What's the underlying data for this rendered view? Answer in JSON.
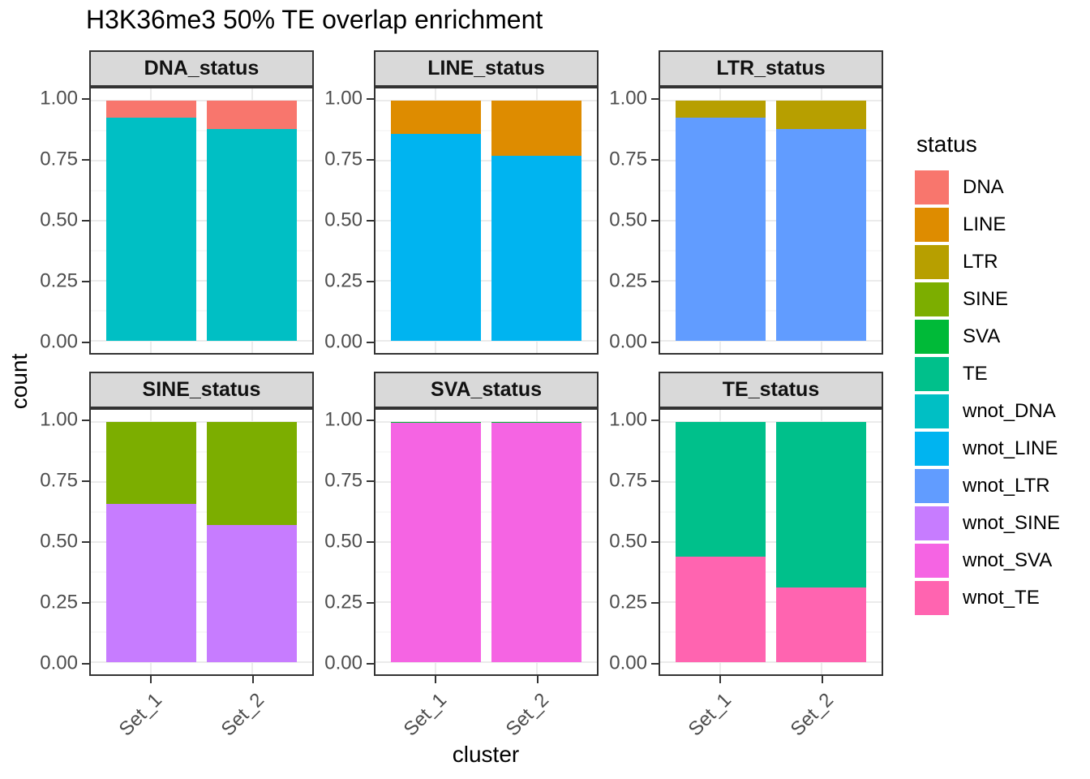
{
  "title": "H3K36me3 50% TE overlap enrichment",
  "axes": {
    "x_title": "cluster",
    "y_title": "count",
    "y_tick_labels": [
      "1.00",
      "0.75",
      "0.50",
      "0.25",
      "0.00"
    ],
    "x_tick_labels": [
      "Set_1",
      "Set_2"
    ]
  },
  "legend": {
    "title": "status",
    "position": "right",
    "entries": [
      {
        "label": "DNA",
        "color": "#F8766D"
      },
      {
        "label": "LINE",
        "color": "#DE8C00"
      },
      {
        "label": "LTR",
        "color": "#B79F00"
      },
      {
        "label": "SINE",
        "color": "#7CAE00"
      },
      {
        "label": "SVA",
        "color": "#00BA38"
      },
      {
        "label": "TE",
        "color": "#00C08B"
      },
      {
        "label": "wnot_DNA",
        "color": "#00BFC4"
      },
      {
        "label": "wnot_LINE",
        "color": "#00B4F0"
      },
      {
        "label": "wnot_LTR",
        "color": "#619CFF"
      },
      {
        "label": "wnot_SINE",
        "color": "#C77CFF"
      },
      {
        "label": "wnot_SVA",
        "color": "#F564E3"
      },
      {
        "label": "wnot_TE",
        "color": "#FF64B0"
      }
    ]
  },
  "style": {
    "panel_border_color": "#333333",
    "strip_fill": "#D9D9D9",
    "grid_major_color": "#EBEBEB",
    "tick_label_color": "#4D4D4D"
  },
  "chart_data": {
    "type": "bar",
    "mode": "stacked-proportion",
    "facet_layout": "3x2",
    "title": "H3K36me3 50% TE overlap enrichment",
    "xlabel": "cluster",
    "ylabel": "count",
    "ylim": [
      0,
      1
    ],
    "grid": true,
    "legend_position": "right",
    "y_major_ticks": [
      1.0,
      0.75,
      0.5,
      0.25,
      0.0
    ],
    "y_minor_ticks": [
      0.875,
      0.625,
      0.375,
      0.125
    ],
    "categories": [
      "Set_1",
      "Set_2"
    ],
    "colors": {
      "DNA": "#F8766D",
      "LINE": "#DE8C00",
      "LTR": "#B79F00",
      "SINE": "#7CAE00",
      "SVA": "#00BA38",
      "TE": "#00C08B",
      "wnot_DNA": "#00BFC4",
      "wnot_LINE": "#00B4F0",
      "wnot_LTR": "#619CFF",
      "wnot_SINE": "#C77CFF",
      "wnot_SVA": "#F564E3",
      "wnot_TE": "#FF64B0"
    },
    "facets": [
      {
        "name": "DNA_status",
        "bars": [
          {
            "category": "Set_1",
            "segments": [
              {
                "status": "DNA",
                "value": 0.07
              },
              {
                "status": "wnot_DNA",
                "value": 0.93
              }
            ]
          },
          {
            "category": "Set_2",
            "segments": [
              {
                "status": "DNA",
                "value": 0.12
              },
              {
                "status": "wnot_DNA",
                "value": 0.88
              }
            ]
          }
        ]
      },
      {
        "name": "LINE_status",
        "bars": [
          {
            "category": "Set_1",
            "segments": [
              {
                "status": "LINE",
                "value": 0.14
              },
              {
                "status": "wnot_LINE",
                "value": 0.86
              }
            ]
          },
          {
            "category": "Set_2",
            "segments": [
              {
                "status": "LINE",
                "value": 0.23
              },
              {
                "status": "wnot_LINE",
                "value": 0.77
              }
            ]
          }
        ]
      },
      {
        "name": "LTR_status",
        "bars": [
          {
            "category": "Set_1",
            "segments": [
              {
                "status": "LTR",
                "value": 0.07
              },
              {
                "status": "wnot_LTR",
                "value": 0.93
              }
            ]
          },
          {
            "category": "Set_2",
            "segments": [
              {
                "status": "LTR",
                "value": 0.12
              },
              {
                "status": "wnot_LTR",
                "value": 0.88
              }
            ]
          }
        ]
      },
      {
        "name": "SINE_status",
        "bars": [
          {
            "category": "Set_1",
            "segments": [
              {
                "status": "SINE",
                "value": 0.34
              },
              {
                "status": "wnot_SINE",
                "value": 0.66
              }
            ]
          },
          {
            "category": "Set_2",
            "segments": [
              {
                "status": "SINE",
                "value": 0.43
              },
              {
                "status": "wnot_SINE",
                "value": 0.57
              }
            ]
          }
        ]
      },
      {
        "name": "SVA_status",
        "bars": [
          {
            "category": "Set_1",
            "segments": [
              {
                "status": "SVA",
                "value": 0.005
              },
              {
                "status": "wnot_SVA",
                "value": 0.995
              }
            ]
          },
          {
            "category": "Set_2",
            "segments": [
              {
                "status": "SVA",
                "value": 0.005
              },
              {
                "status": "wnot_SVA",
                "value": 0.995
              }
            ]
          }
        ]
      },
      {
        "name": "TE_status",
        "bars": [
          {
            "category": "Set_1",
            "segments": [
              {
                "status": "TE",
                "value": 0.56
              },
              {
                "status": "wnot_TE",
                "value": 0.44
              }
            ]
          },
          {
            "category": "Set_2",
            "segments": [
              {
                "status": "TE",
                "value": 0.69
              },
              {
                "status": "wnot_TE",
                "value": 0.31
              }
            ]
          }
        ]
      }
    ]
  }
}
